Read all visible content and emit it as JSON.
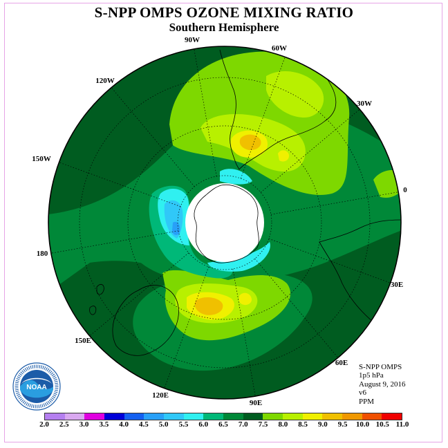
{
  "title": "S-NPP OMPS OZONE MIXING RATIO",
  "subtitle": "Southern Hemisphere",
  "meridian_labels": [
    "90W",
    "60W",
    "30W",
    "0",
    "30E",
    "60E",
    "90E",
    "120E",
    "150E",
    "180",
    "150W",
    "120W"
  ],
  "info": {
    "instrument": "S-NPP OMPS",
    "level": "1p5 hPa",
    "date": "August 9, 2016",
    "version": "v6",
    "units": "PPM"
  },
  "logo": {
    "text": "NOAA",
    "ring_text": "NATIONAL OCEANIC AND ATMOSPHERIC ADMINISTRATION · U.S. DEPARTMENT OF COMMERCE"
  },
  "colorbar": {
    "ticks": [
      "2.0",
      "2.5",
      "3.0",
      "3.5",
      "4.0",
      "4.5",
      "5.0",
      "5.5",
      "6.0",
      "6.5",
      "7.0",
      "7.5",
      "8.0",
      "8.5",
      "9.0",
      "9.5",
      "10.0",
      "10.5",
      "11.0"
    ],
    "colors": [
      "#b57ff0",
      "#d9a8f0",
      "#e000e0",
      "#0000d8",
      "#1460f0",
      "#28a0f8",
      "#30c8f8",
      "#30f0f0",
      "#00b878",
      "#008838",
      "#005c20",
      "#7ed800",
      "#b8f000",
      "#f0f000",
      "#f0c000",
      "#f09800",
      "#f05000",
      "#f00000",
      "#8c4c2c"
    ]
  },
  "map_colors": {
    "v65": "#008838",
    "v70": "#005c20",
    "v60": "#00b878",
    "v75": "#7ed800",
    "v80": "#b8f000",
    "v85": "#f0f000",
    "v90": "#f0c000",
    "v95": "#f09800",
    "v55": "#30f0f0",
    "v50": "#30c8f8",
    "v45": "#28a0f8",
    "pole": "#ffffff"
  }
}
